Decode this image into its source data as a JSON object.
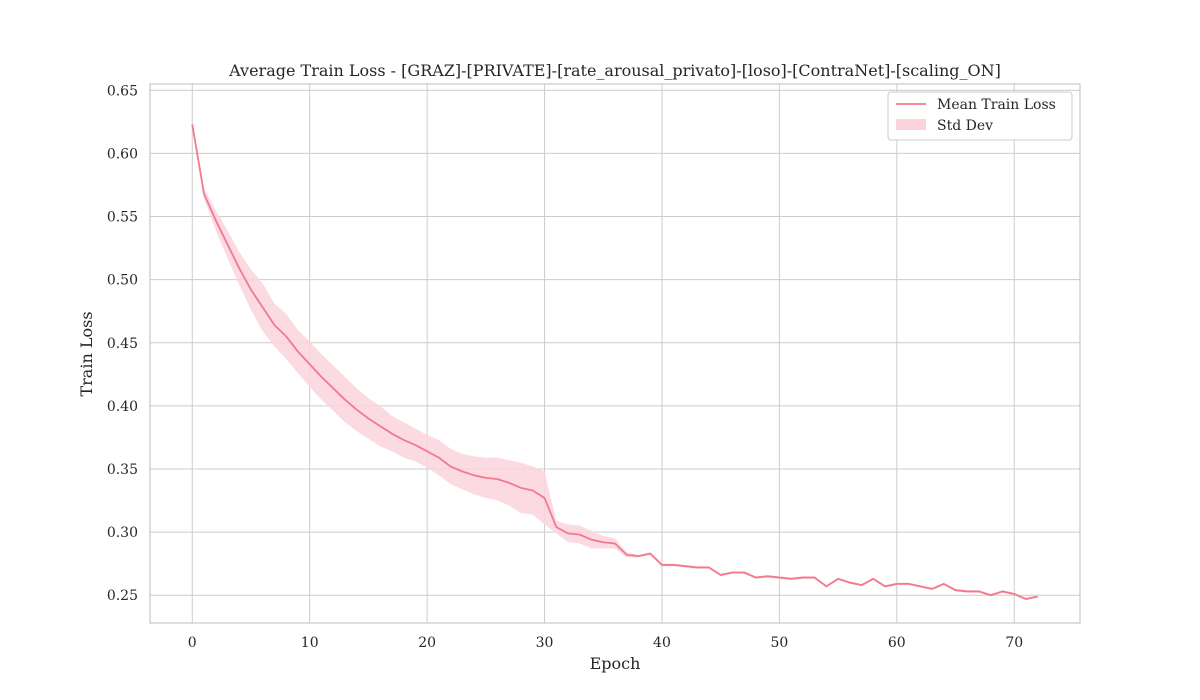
{
  "chart_data": {
    "type": "line",
    "title": "Average Train Loss - [GRAZ]-[PRIVATE]-[rate_arousal_privato]-[loso]-[ContraNet]-[scaling_ON]",
    "xlabel": "Epoch",
    "ylabel": "Train Loss",
    "xlim": [
      -3.6,
      75.6
    ],
    "ylim": [
      0.228,
      0.655
    ],
    "xticks": [
      0,
      10,
      20,
      30,
      40,
      50,
      60,
      70
    ],
    "yticks": [
      0.25,
      0.3,
      0.35,
      0.4,
      0.45,
      0.5,
      0.55,
      0.6,
      0.65
    ],
    "grid": true,
    "legend_position": "top-right",
    "colors": {
      "line": "#f27991",
      "band": "#fbd3dc"
    },
    "series": [
      {
        "name": "Mean Train Loss",
        "x": [
          0,
          1,
          2,
          3,
          4,
          5,
          6,
          7,
          8,
          9,
          10,
          11,
          12,
          13,
          14,
          15,
          16,
          17,
          18,
          19,
          20,
          21,
          22,
          23,
          24,
          25,
          26,
          27,
          28,
          29,
          30,
          31,
          32,
          33,
          34,
          35,
          36,
          37,
          38,
          39,
          40,
          41,
          42,
          43,
          44,
          45,
          46,
          47,
          48,
          49,
          50,
          51,
          52,
          53,
          54,
          55,
          56,
          57,
          58,
          59,
          60,
          61,
          62,
          63,
          64,
          65,
          66,
          67,
          68,
          69,
          70,
          71,
          72
        ],
        "y": [
          0.623,
          0.568,
          0.547,
          0.528,
          0.509,
          0.492,
          0.478,
          0.464,
          0.455,
          0.443,
          0.433,
          0.423,
          0.414,
          0.405,
          0.397,
          0.39,
          0.384,
          0.378,
          0.373,
          0.369,
          0.364,
          0.359,
          0.352,
          0.348,
          0.345,
          0.343,
          0.342,
          0.339,
          0.335,
          0.333,
          0.327,
          0.304,
          0.299,
          0.298,
          0.294,
          0.292,
          0.291,
          0.282,
          0.281,
          0.283,
          0.274,
          0.274,
          0.273,
          0.272,
          0.272,
          0.266,
          0.268,
          0.268,
          0.264,
          0.265,
          0.264,
          0.263,
          0.264,
          0.264,
          0.257,
          0.263,
          0.26,
          0.258,
          0.263,
          0.257,
          0.259,
          0.259,
          0.257,
          0.255,
          0.259,
          0.254,
          0.253,
          0.253,
          0.25,
          0.253,
          0.251,
          0.247,
          0.249
        ]
      },
      {
        "name": "Std Dev",
        "x": [
          0,
          1,
          2,
          3,
          4,
          5,
          6,
          7,
          8,
          9,
          10,
          11,
          12,
          13,
          14,
          15,
          16,
          17,
          18,
          19,
          20,
          21,
          22,
          23,
          24,
          25,
          26,
          27,
          28,
          29,
          30,
          31,
          32,
          33,
          34,
          35,
          36,
          37,
          38,
          39,
          40,
          41,
          42,
          43,
          44,
          45,
          46,
          47,
          48,
          49,
          50,
          51,
          52,
          53,
          54,
          55,
          56,
          57,
          58,
          59,
          60,
          61,
          62,
          63,
          64,
          65,
          66,
          67,
          68,
          69,
          70,
          71,
          72
        ],
        "upper": [
          0.624,
          0.572,
          0.555,
          0.539,
          0.522,
          0.508,
          0.497,
          0.481,
          0.473,
          0.46,
          0.451,
          0.441,
          0.432,
          0.423,
          0.414,
          0.406,
          0.4,
          0.392,
          0.387,
          0.382,
          0.377,
          0.373,
          0.366,
          0.362,
          0.36,
          0.359,
          0.359,
          0.357,
          0.355,
          0.352,
          0.348,
          0.309,
          0.306,
          0.305,
          0.301,
          0.297,
          0.295,
          0.284,
          0.282,
          0.284,
          0.275,
          0.275,
          0.274,
          0.273,
          0.273,
          0.267,
          0.269,
          0.269,
          0.265,
          0.266,
          0.265,
          0.264,
          0.265,
          0.265,
          0.258,
          0.264,
          0.261,
          0.259,
          0.264,
          0.258,
          0.26,
          0.26,
          0.258,
          0.256,
          0.26,
          0.255,
          0.254,
          0.254,
          0.251,
          0.254,
          0.252,
          0.248,
          0.25
        ],
        "lower": [
          0.622,
          0.564,
          0.539,
          0.517,
          0.496,
          0.476,
          0.459,
          0.447,
          0.437,
          0.426,
          0.415,
          0.405,
          0.396,
          0.387,
          0.38,
          0.374,
          0.368,
          0.364,
          0.359,
          0.356,
          0.351,
          0.345,
          0.338,
          0.334,
          0.33,
          0.327,
          0.325,
          0.321,
          0.315,
          0.314,
          0.306,
          0.299,
          0.292,
          0.291,
          0.287,
          0.287,
          0.287,
          0.28,
          0.28,
          0.282,
          0.273,
          0.273,
          0.272,
          0.271,
          0.271,
          0.265,
          0.267,
          0.267,
          0.263,
          0.264,
          0.263,
          0.262,
          0.263,
          0.263,
          0.256,
          0.262,
          0.259,
          0.257,
          0.262,
          0.256,
          0.258,
          0.258,
          0.256,
          0.254,
          0.258,
          0.253,
          0.252,
          0.252,
          0.249,
          0.252,
          0.25,
          0.246,
          0.248
        ]
      }
    ]
  }
}
